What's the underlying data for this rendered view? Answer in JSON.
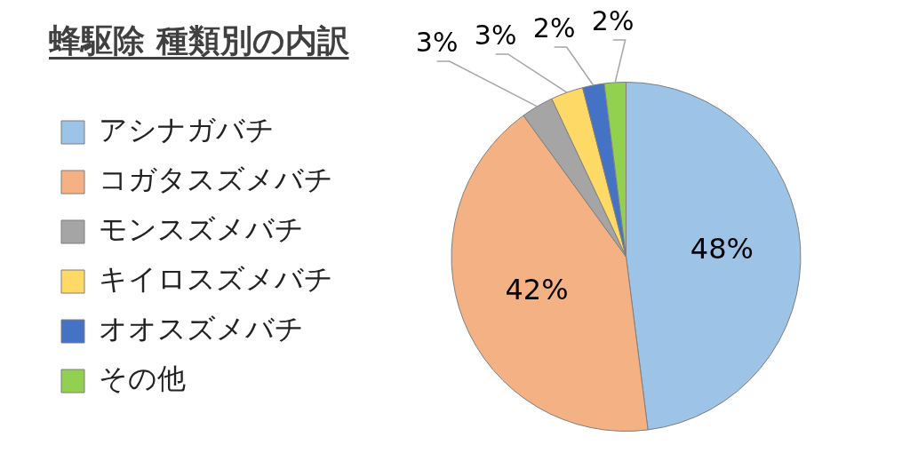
{
  "chart_data": {
    "type": "pie",
    "title": "蜂駆除 種類別の内訳",
    "categories": [
      "アシナガバチ",
      "コガタスズメバチ",
      "モンスズメバチ",
      "キイロスズメバチ",
      "オオスズメバチ",
      "その他"
    ],
    "values": [
      48,
      42,
      3,
      3,
      2,
      2
    ],
    "colors": [
      "#9dc3e6",
      "#f4b183",
      "#a5a5a5",
      "#ffd966",
      "#4472c4",
      "#92d050"
    ],
    "value_labels": [
      "48%",
      "42%",
      "3%",
      "3%",
      "2%",
      "2%"
    ],
    "legend": "left"
  }
}
